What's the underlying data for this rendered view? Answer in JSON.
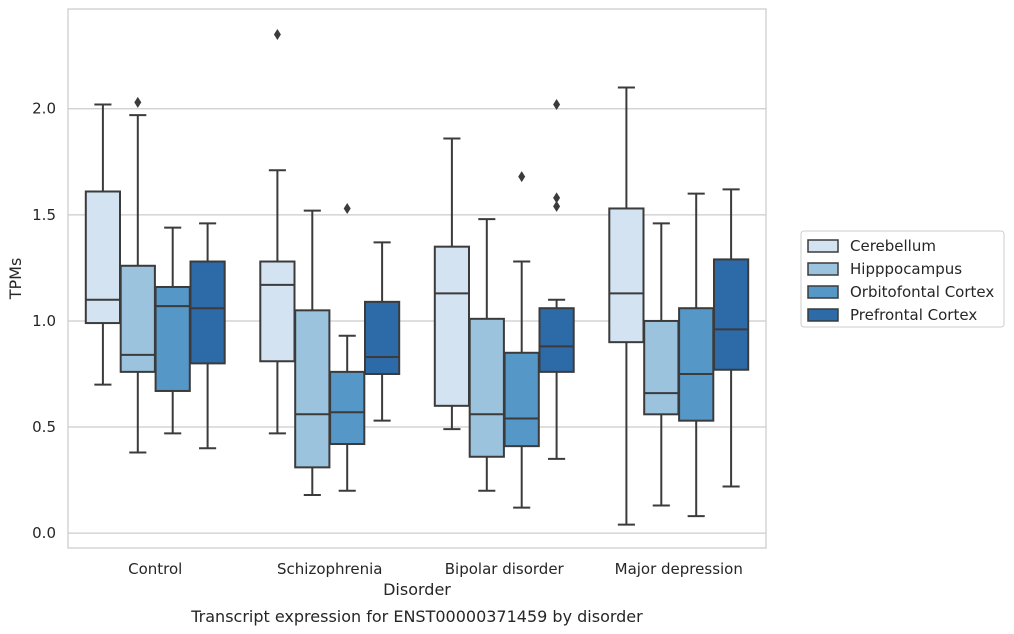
{
  "chart_data": {
    "type": "box",
    "caption": "Transcript expression for ENST00000371459 by disorder",
    "xlabel": "Disorder",
    "ylabel": "TPMs",
    "ylim": [
      -0.07,
      2.47
    ],
    "yticks": [
      0.0,
      0.5,
      1.0,
      1.5,
      2.0
    ],
    "ytick_labels": [
      "0.0",
      "0.5",
      "1.0",
      "1.5",
      "2.0"
    ],
    "grid": "horizontal",
    "legend_position": "right",
    "categories": [
      "Control",
      "Schizophrenia",
      "Bipolar disorder",
      "Major depression"
    ],
    "series": [
      {
        "name": "Cerebellum",
        "color": "#d3e3f2",
        "boxes": [
          {
            "whisker_low": 0.7,
            "q1": 0.99,
            "median": 1.1,
            "q3": 1.61,
            "whisker_high": 2.02,
            "outliers": []
          },
          {
            "whisker_low": 0.47,
            "q1": 0.81,
            "median": 1.17,
            "q3": 1.28,
            "whisker_high": 1.71,
            "outliers": [
              2.35
            ]
          },
          {
            "whisker_low": 0.49,
            "q1": 0.6,
            "median": 1.13,
            "q3": 1.35,
            "whisker_high": 1.86,
            "outliers": []
          },
          {
            "whisker_low": 0.04,
            "q1": 0.9,
            "median": 1.13,
            "q3": 1.53,
            "whisker_high": 2.1,
            "outliers": []
          }
        ]
      },
      {
        "name": "Hipppocampus",
        "color": "#9cc3dd",
        "boxes": [
          {
            "whisker_low": 0.38,
            "q1": 0.76,
            "median": 0.84,
            "q3": 1.26,
            "whisker_high": 1.97,
            "outliers": [
              2.03
            ]
          },
          {
            "whisker_low": 0.18,
            "q1": 0.31,
            "median": 0.56,
            "q3": 1.05,
            "whisker_high": 1.52,
            "outliers": []
          },
          {
            "whisker_low": 0.2,
            "q1": 0.36,
            "median": 0.56,
            "q3": 1.01,
            "whisker_high": 1.48,
            "outliers": []
          },
          {
            "whisker_low": 0.13,
            "q1": 0.56,
            "median": 0.66,
            "q3": 1.0,
            "whisker_high": 1.46,
            "outliers": []
          }
        ]
      },
      {
        "name": "Orbitofontal Cortex",
        "color": "#5597c6",
        "boxes": [
          {
            "whisker_low": 0.47,
            "q1": 0.67,
            "median": 1.07,
            "q3": 1.16,
            "whisker_high": 1.44,
            "outliers": []
          },
          {
            "whisker_low": 0.2,
            "q1": 0.42,
            "median": 0.57,
            "q3": 0.76,
            "whisker_high": 0.93,
            "outliers": [
              1.53
            ]
          },
          {
            "whisker_low": 0.12,
            "q1": 0.41,
            "median": 0.54,
            "q3": 0.85,
            "whisker_high": 1.28,
            "outliers": [
              1.68
            ]
          },
          {
            "whisker_low": 0.08,
            "q1": 0.53,
            "median": 0.75,
            "q3": 1.06,
            "whisker_high": 1.6,
            "outliers": []
          }
        ]
      },
      {
        "name": "Prefrontal Cortex",
        "color": "#2c6aa8",
        "boxes": [
          {
            "whisker_low": 0.4,
            "q1": 0.8,
            "median": 1.06,
            "q3": 1.28,
            "whisker_high": 1.46,
            "outliers": []
          },
          {
            "whisker_low": 0.53,
            "q1": 0.75,
            "median": 0.83,
            "q3": 1.09,
            "whisker_high": 1.37,
            "outliers": []
          },
          {
            "whisker_low": 0.35,
            "q1": 0.76,
            "median": 0.88,
            "q3": 1.06,
            "whisker_high": 1.1,
            "outliers": [
              1.54,
              1.58,
              2.02
            ]
          },
          {
            "whisker_low": 0.22,
            "q1": 0.77,
            "median": 0.96,
            "q3": 1.29,
            "whisker_high": 1.62,
            "outliers": []
          }
        ]
      }
    ]
  }
}
